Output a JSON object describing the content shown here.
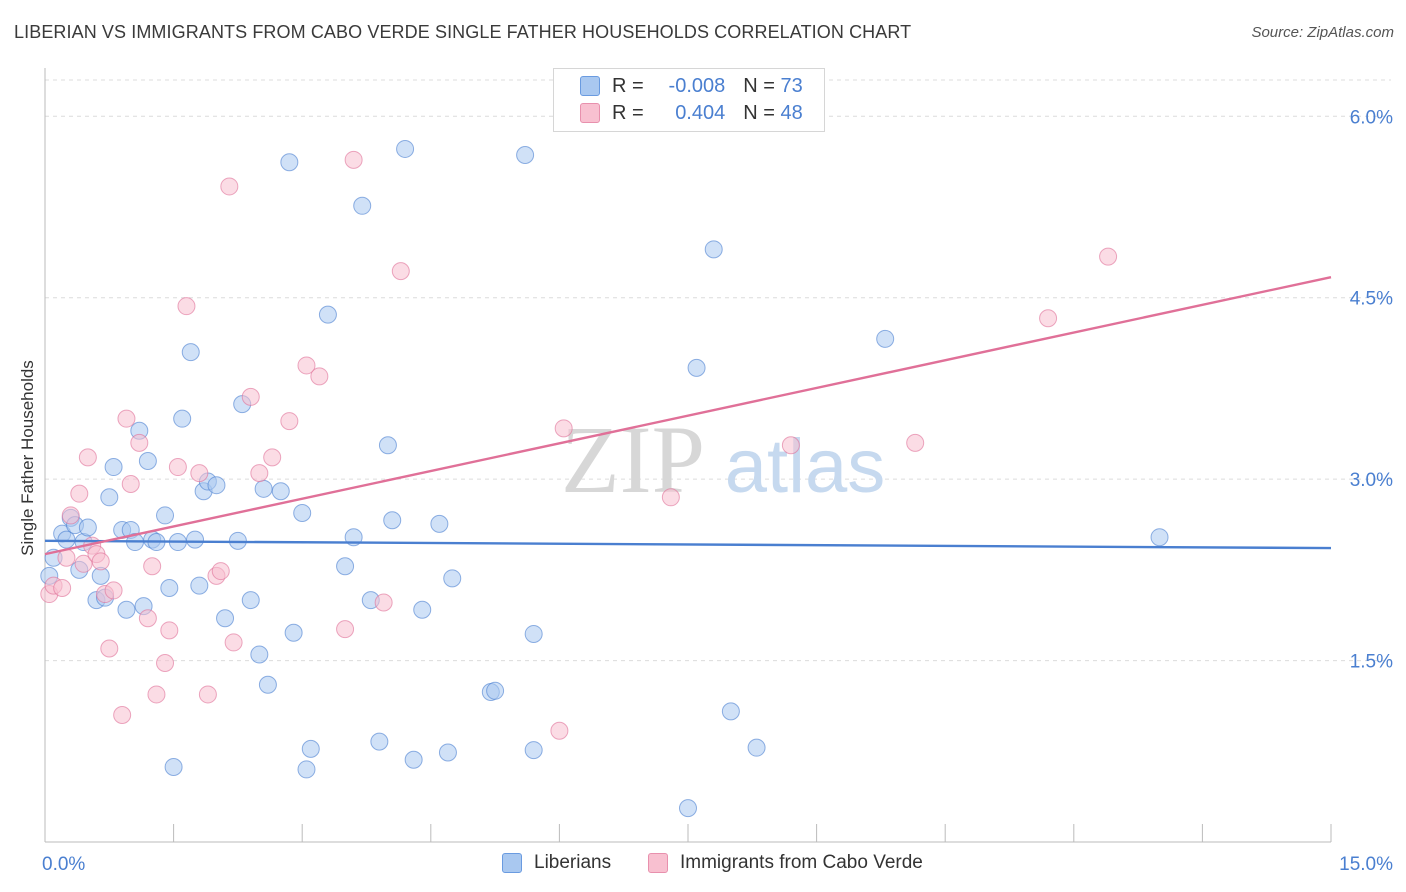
{
  "title": "LIBERIAN VS IMMIGRANTS FROM CABO VERDE SINGLE FATHER HOUSEHOLDS CORRELATION CHART",
  "source": "Source: ZipAtlas.com",
  "watermark": {
    "zip": "ZIP",
    "atlas": "atlas"
  },
  "legend": {
    "r_label": "R =",
    "n_label": "N =",
    "rows": [
      {
        "r": "-0.008",
        "n": "73",
        "color": "#a9c8f0",
        "border": "#6a9be0"
      },
      {
        "r": "0.404",
        "n": "48",
        "color": "#f8c0d0",
        "border": "#e890ad"
      }
    ]
  },
  "bottom_legend": [
    "Liberians",
    "Immigrants from Cabo Verde"
  ],
  "chart_data": {
    "type": "scatter",
    "title": "LIBERIAN VS IMMIGRANTS FROM CABO VERDE SINGLE FATHER HOUSEHOLDS CORRELATION CHART",
    "xlabel": "",
    "ylabel": "Single Father Households",
    "xlim": [
      0,
      15
    ],
    "ylim": [
      0,
      6.3
    ],
    "x_tick_labels": [
      "0.0%",
      "15.0%"
    ],
    "y_ticks": [
      1.5,
      3.0,
      4.5,
      6.0
    ],
    "y_tick_labels": [
      "1.5%",
      "3.0%",
      "4.5%",
      "6.0%"
    ],
    "grid": true,
    "series": [
      {
        "name": "Liberians",
        "color": "#4a7fd0",
        "fill": "#a9c8f0",
        "trend": {
          "x": [
            0,
            15
          ],
          "y": [
            2.49,
            2.43
          ]
        },
        "points": [
          [
            0.1,
            2.35
          ],
          [
            0.2,
            2.55
          ],
          [
            0.25,
            2.5
          ],
          [
            0.3,
            2.68
          ],
          [
            0.35,
            2.62
          ],
          [
            0.4,
            2.25
          ],
          [
            0.45,
            2.48
          ],
          [
            0.5,
            2.6
          ],
          [
            0.6,
            2.0
          ],
          [
            0.65,
            2.2
          ],
          [
            0.7,
            2.02
          ],
          [
            0.75,
            2.85
          ],
          [
            0.8,
            3.1
          ],
          [
            0.9,
            2.58
          ],
          [
            0.95,
            1.92
          ],
          [
            1.0,
            2.58
          ],
          [
            1.05,
            2.48
          ],
          [
            1.1,
            3.4
          ],
          [
            1.15,
            1.95
          ],
          [
            1.2,
            3.15
          ],
          [
            1.25,
            2.5
          ],
          [
            1.3,
            2.48
          ],
          [
            1.4,
            2.7
          ],
          [
            1.45,
            2.1
          ],
          [
            1.5,
            0.62
          ],
          [
            1.55,
            2.48
          ],
          [
            1.6,
            3.5
          ],
          [
            1.7,
            4.05
          ],
          [
            1.75,
            2.5
          ],
          [
            1.8,
            2.12
          ],
          [
            1.85,
            2.9
          ],
          [
            1.9,
            2.98
          ],
          [
            2.0,
            2.95
          ],
          [
            2.1,
            1.85
          ],
          [
            2.25,
            2.49
          ],
          [
            2.3,
            3.62
          ],
          [
            2.4,
            2.0
          ],
          [
            2.5,
            1.55
          ],
          [
            2.55,
            2.92
          ],
          [
            2.6,
            1.3
          ],
          [
            2.75,
            2.9
          ],
          [
            2.9,
            1.73
          ],
          [
            2.85,
            5.62
          ],
          [
            3.0,
            2.72
          ],
          [
            3.05,
            0.6
          ],
          [
            3.1,
            0.77
          ],
          [
            3.3,
            4.36
          ],
          [
            3.5,
            2.28
          ],
          [
            3.6,
            2.52
          ],
          [
            3.7,
            5.26
          ],
          [
            3.8,
            2.0
          ],
          [
            3.9,
            0.83
          ],
          [
            4.0,
            3.28
          ],
          [
            4.05,
            2.66
          ],
          [
            4.2,
            5.73
          ],
          [
            4.3,
            0.68
          ],
          [
            4.4,
            1.92
          ],
          [
            4.6,
            2.63
          ],
          [
            4.7,
            0.74
          ],
          [
            4.75,
            2.18
          ],
          [
            5.2,
            1.24
          ],
          [
            5.25,
            1.25
          ],
          [
            5.6,
            5.68
          ],
          [
            5.7,
            0.76
          ],
          [
            5.7,
            1.72
          ],
          [
            7.5,
            0.28
          ],
          [
            7.6,
            3.92
          ],
          [
            7.8,
            4.9
          ],
          [
            8.0,
            1.08
          ],
          [
            8.3,
            0.78
          ],
          [
            9.8,
            4.16
          ],
          [
            13.0,
            2.52
          ],
          [
            0.05,
            2.2
          ]
        ]
      },
      {
        "name": "Immigrants from Cabo Verde",
        "color": "#e07098",
        "fill": "#f8c0d0",
        "trend": {
          "x": [
            0,
            15
          ],
          "y": [
            2.38,
            4.67
          ]
        },
        "points": [
          [
            0.05,
            2.05
          ],
          [
            0.1,
            2.12
          ],
          [
            0.2,
            2.1
          ],
          [
            0.25,
            2.35
          ],
          [
            0.3,
            2.7
          ],
          [
            0.4,
            2.88
          ],
          [
            0.45,
            2.3
          ],
          [
            0.5,
            3.18
          ],
          [
            0.55,
            2.45
          ],
          [
            0.6,
            2.38
          ],
          [
            0.65,
            2.32
          ],
          [
            0.7,
            2.05
          ],
          [
            0.75,
            1.6
          ],
          [
            0.8,
            2.08
          ],
          [
            0.9,
            1.05
          ],
          [
            0.95,
            3.5
          ],
          [
            1.0,
            2.96
          ],
          [
            1.1,
            3.3
          ],
          [
            1.2,
            1.85
          ],
          [
            1.25,
            2.28
          ],
          [
            1.3,
            1.22
          ],
          [
            1.4,
            1.48
          ],
          [
            1.45,
            1.75
          ],
          [
            1.55,
            3.1
          ],
          [
            1.65,
            4.43
          ],
          [
            1.8,
            3.05
          ],
          [
            1.9,
            1.22
          ],
          [
            2.0,
            2.2
          ],
          [
            2.05,
            2.24
          ],
          [
            2.15,
            5.42
          ],
          [
            2.2,
            1.65
          ],
          [
            2.4,
            3.68
          ],
          [
            2.5,
            3.05
          ],
          [
            2.65,
            3.18
          ],
          [
            2.85,
            3.48
          ],
          [
            3.05,
            3.94
          ],
          [
            3.2,
            3.85
          ],
          [
            3.5,
            1.76
          ],
          [
            3.6,
            5.64
          ],
          [
            3.95,
            1.98
          ],
          [
            4.15,
            4.72
          ],
          [
            6.0,
            0.92
          ],
          [
            6.05,
            3.42
          ],
          [
            7.3,
            2.85
          ],
          [
            8.7,
            3.28
          ],
          [
            10.15,
            3.3
          ],
          [
            11.7,
            4.33
          ],
          [
            12.4,
            4.84
          ]
        ]
      }
    ]
  }
}
